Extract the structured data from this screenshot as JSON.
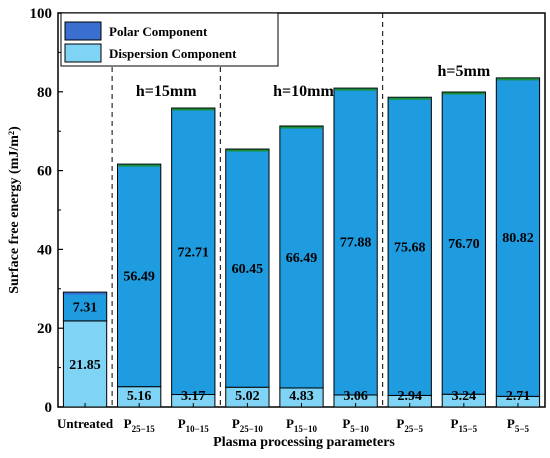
{
  "chart_data": {
    "type": "bar",
    "stacked": true,
    "categories": [
      {
        "base": "Untreated",
        "sub": ""
      },
      {
        "base": "P",
        "sub": "25−15"
      },
      {
        "base": "P",
        "sub": "10−15"
      },
      {
        "base": "P",
        "sub": "25−10"
      },
      {
        "base": "P",
        "sub": "15−10"
      },
      {
        "base": "P",
        "sub": "5−10"
      },
      {
        "base": "P",
        "sub": "25−5"
      },
      {
        "base": "P",
        "sub": "15−5"
      },
      {
        "base": "P",
        "sub": "5−5"
      }
    ],
    "series": [
      {
        "name": "Dispersion Component",
        "values": [
          21.85,
          5.16,
          3.17,
          5.02,
          4.83,
          3.06,
          2.94,
          3.24,
          2.71
        ],
        "color": "#7fd4f5"
      },
      {
        "name": "Polar Component",
        "values": [
          7.31,
          56.49,
          72.71,
          60.45,
          66.49,
          77.88,
          75.68,
          76.7,
          80.82
        ],
        "color": "#1f9be0"
      }
    ],
    "xlabel": "Plasma processing parameters",
    "ylabel": "Surface free energy (mJ/m²)",
    "ylim": [
      0,
      100
    ],
    "yticks": [
      0,
      20,
      40,
      60,
      80,
      100
    ],
    "legend": "top-left",
    "groups": [
      {
        "label": "h=15mm",
        "categories": [
          1,
          2
        ]
      },
      {
        "label": "h=10mm",
        "categories": [
          3,
          5
        ]
      },
      {
        "label": "h=5mm",
        "categories": [
          6,
          8
        ]
      }
    ],
    "group_separators": "dashed",
    "colors": {
      "polar": "#1f9be0",
      "dispersion": "#7fd4f5",
      "polar_cap_untreated": "#3a6fd0"
    }
  }
}
